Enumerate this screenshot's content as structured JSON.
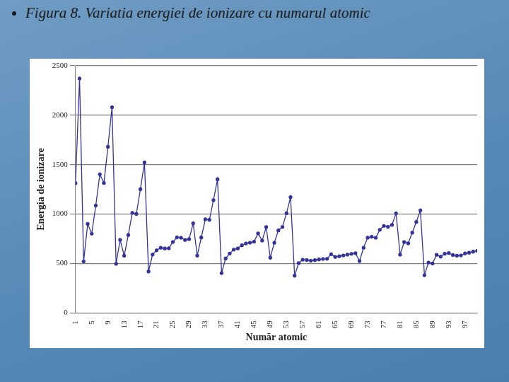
{
  "chart_data": {
    "type": "line",
    "title": "Figura 8. Variatia energiei de ionizare cu numarul atomic",
    "x_label": "Număr atomic",
    "y_label": "Energia de ionizare",
    "x": [
      1,
      2,
      3,
      4,
      5,
      6,
      7,
      8,
      9,
      10,
      11,
      12,
      13,
      14,
      15,
      16,
      17,
      18,
      19,
      20,
      21,
      22,
      23,
      24,
      25,
      26,
      27,
      28,
      29,
      30,
      31,
      32,
      33,
      34,
      35,
      36,
      37,
      38,
      39,
      40,
      41,
      42,
      43,
      44,
      45,
      46,
      47,
      48,
      49,
      50,
      51,
      52,
      53,
      54,
      55,
      56,
      57,
      58,
      59,
      60,
      61,
      62,
      63,
      64,
      65,
      66,
      67,
      68,
      69,
      70,
      71,
      72,
      73,
      74,
      75,
      76,
      77,
      78,
      79,
      80,
      81,
      82,
      83,
      84,
      85,
      86,
      87,
      88,
      89,
      90,
      91,
      92,
      93,
      94,
      95,
      96,
      97,
      98,
      99,
      100
    ],
    "values": [
      1312,
      2372,
      520,
      900,
      801,
      1086,
      1402,
      1314,
      1681,
      2081,
      496,
      738,
      578,
      787,
      1012,
      1000,
      1251,
      1521,
      419,
      590,
      633,
      659,
      651,
      653,
      717,
      763,
      760,
      737,
      746,
      906,
      579,
      762,
      947,
      941,
      1140,
      1351,
      403,
      550,
      600,
      640,
      652,
      684,
      702,
      710,
      720,
      804,
      731,
      868,
      558,
      709,
      834,
      869,
      1008,
      1170,
      376,
      503,
      538,
      534,
      527,
      533,
      540,
      545,
      547,
      593,
      566,
      573,
      581,
      589,
      597,
      603,
      524,
      659,
      761,
      770,
      760,
      840,
      880,
      870,
      890,
      1007,
      589,
      716,
      703,
      812,
      920,
      1037,
      380,
      509,
      499,
      587,
      568,
      598,
      605,
      585,
      578,
      581,
      601,
      608,
      619,
      627
    ],
    "color": "#333399",
    "marker": "circle",
    "xlim": [
      1,
      100
    ],
    "xticks": [
      1,
      5,
      9,
      13,
      17,
      21,
      25,
      29,
      33,
      37,
      41,
      45,
      49,
      53,
      57,
      61,
      65,
      69,
      73,
      77,
      81,
      85,
      89,
      93,
      97
    ],
    "ylim": [
      0,
      2500
    ],
    "yticks": [
      0,
      500,
      1000,
      1500,
      2000,
      2500
    ],
    "grid": true
  }
}
